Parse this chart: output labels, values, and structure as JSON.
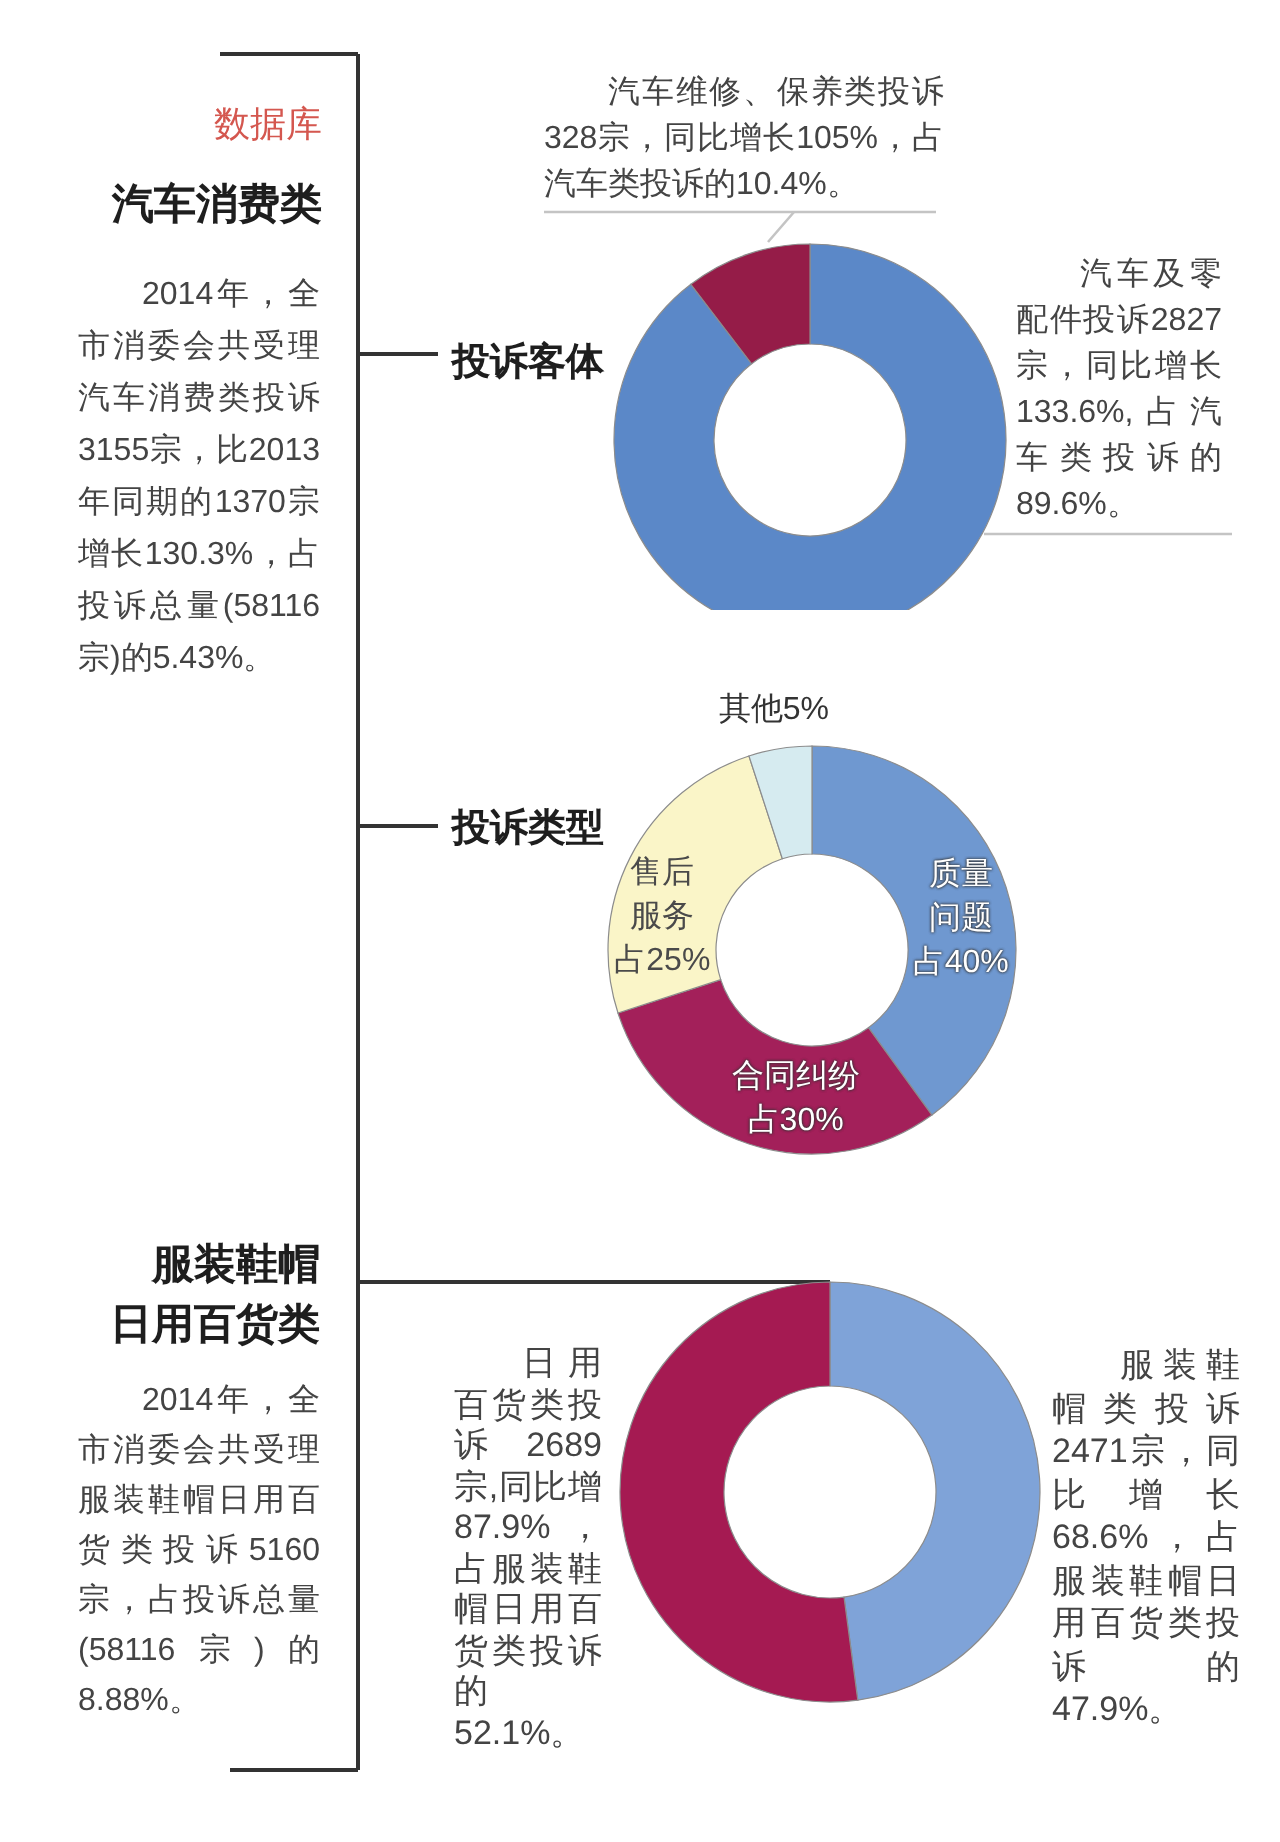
{
  "chart_data": [
    {
      "type": "other",
      "subtitle": "数据库",
      "title": "汽车消费类",
      "annotations": [
        "2014年，全市消委会共受理汽车消费类投诉3155宗，比2013年同期的1370宗增长130.3%，占投诉总量(58116宗)的5.43%。"
      ]
    },
    {
      "type": "donut",
      "title": "投诉客体",
      "categories": [
        "汽车及零配件投诉2827宗，同比增长133.6%,占汽车类投诉的89.6%。",
        "汽车维修、保养类投诉328宗，同比增长105%，占汽车类投诉的10.4%。"
      ],
      "values": [
        2827,
        328
      ],
      "colors": [
        "#5b88c8",
        "#951c48"
      ]
    },
    {
      "type": "donut",
      "title": "投诉类型",
      "categories": [
        "质量问题",
        "合同纠纷",
        "售后服务",
        "其他"
      ],
      "values": [
        40,
        30,
        25,
        5
      ],
      "value_labels": [
        "占40%",
        "占30%",
        "占25%",
        "5%"
      ],
      "colors": [
        "#6f98d0",
        "#a3205a",
        "#faf5c8",
        "#d6ebf0"
      ]
    },
    {
      "type": "other",
      "title": "服装鞋帽日用百货类",
      "annotations": [
        "2014年，全市消委会共受理服装鞋帽日用百货类投诉5160宗，占投诉总量(58116宗)的8.88%。"
      ]
    },
    {
      "type": "donut",
      "categories": [
        "服装鞋帽类投诉2471宗，同比增长68.6%，占服装鞋帽日用百货类投诉的47.9%。",
        "日用百货类投诉2689宗,同比增87.9%，占服装鞋帽日用百货类投诉的52.1%。"
      ],
      "values": [
        2471,
        2689
      ],
      "colors": [
        "#7fa3d8",
        "#a51a52"
      ]
    }
  ]
}
